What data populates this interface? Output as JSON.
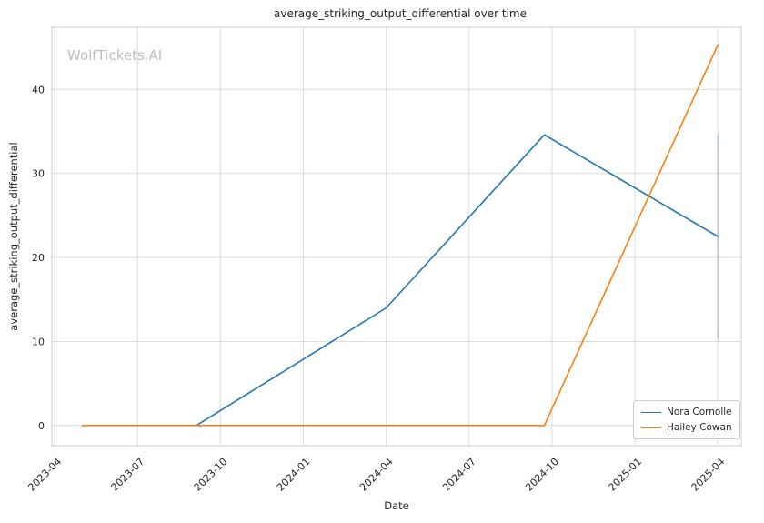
{
  "chart_data": {
    "type": "line",
    "title": "average_striking_output_differential over time",
    "xlabel": "Date",
    "ylabel": "average_striking_output_differential",
    "watermark": "WolfTickets.AI",
    "x_ticks": [
      "2023-04",
      "2023-07",
      "2023-10",
      "2024-01",
      "2024-04",
      "2024-07",
      "2024-10",
      "2025-01",
      "2025-04"
    ],
    "y_ticks": [
      0,
      10,
      20,
      30,
      40
    ],
    "xlim_months": [
      2.9,
      27.85
    ],
    "ylim": [
      -2.4,
      47.4
    ],
    "grid": true,
    "grid_color": "#dcdcdc",
    "plot_border_color": "#cccccc",
    "background_color": "#ffffff",
    "series": [
      {
        "name": "Nora Cornolle",
        "color": "#1f77b4",
        "points": [
          [
            "2023-09-05",
            0
          ],
          [
            "2024-04-01",
            14
          ],
          [
            "2024-09-23",
            34.6
          ],
          [
            "2025-04-01",
            22.5
          ]
        ]
      },
      {
        "name": "Hailey Cowan",
        "color": "#ff7f0e",
        "points": [
          [
            "2023-05-01",
            0
          ],
          [
            "2024-09-23",
            0
          ],
          [
            "2025-04-01",
            45.3
          ]
        ]
      }
    ],
    "error_bar": {
      "series": "Nora Cornolle",
      "x": "2025-04-01",
      "y_low": 10.3,
      "y_high": 34.6,
      "color": "#aec7e8"
    },
    "legend": {
      "position": "lower right",
      "entries": [
        "Nora Cornolle",
        "Hailey Cowan"
      ]
    }
  }
}
